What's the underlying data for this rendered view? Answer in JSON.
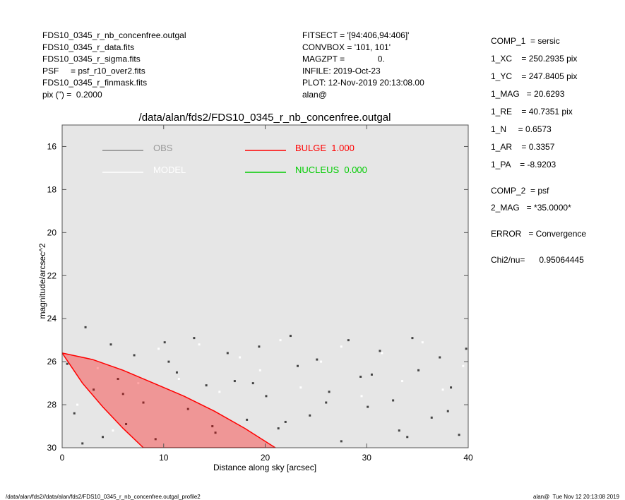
{
  "chart_data": {
    "type": "scatter",
    "title": "/data/alan/fds2/FDS10_0345_r_nb_concenfree.outgal",
    "x_label": "Distance along sky [arcsec]",
    "y_label": "magnitude/arcsec^2",
    "xlim": [
      0,
      40
    ],
    "ylim": [
      30,
      15
    ],
    "xticks": [
      0,
      10,
      20,
      30,
      40
    ],
    "yticks": [
      16,
      18,
      20,
      22,
      24,
      26,
      28,
      30
    ],
    "background": "#e6e6e6",
    "header_left": [
      "FDS10_0345_r_nb_concenfree.outgal",
      "FDS10_0345_r_data.fits",
      "FDS10_0345_r_sigma.fits",
      "PSF     = psf_r10_over2.fits",
      "FDS10_0345_r_finmask.fits",
      "pix (\") =  0.2000"
    ],
    "header_middle": [
      "FITSECT = '[94:406,94:406]'",
      "CONVBOX = '101, 101'",
      "MAGZPT =              0.",
      "INFILE: 2019-Oct-23",
      "PLOT: 12-Nov-2019 20:13:08.00",
      "alan@"
    ],
    "params": [
      "COMP_1  = sersic",
      "1_XC    = 250.2935 pix",
      "1_YC    = 247.8405 pix",
      "1_MAG   = 20.6293",
      "1_RE    = 40.7351 pix",
      "1_N     = 0.6573",
      "1_AR    = 0.3357",
      "1_PA    = -8.9203",
      "COMP_2  = psf",
      "2_MAG   = *35.0000*",
      "ERROR   = Convergence",
      "Chi2/nu=      0.95064445"
    ],
    "footer_left": "/data/alan/fds2//data/alan/fds2/FDS10_0345_r_nb_concenfree.outgal_profile2",
    "footer_right": "alan@  Tue Nov 12 20:13:08 2019",
    "series": [
      {
        "name": "OBS",
        "color": "#444444",
        "legend_color": "#999999",
        "x": [
          0.5,
          1.2,
          2.3,
          3.1,
          4.0,
          4.8,
          5.5,
          6.3,
          7.1,
          8.0,
          9.2,
          10.1,
          11.3,
          12.4,
          13.0,
          14.2,
          15.1,
          16.3,
          17.0,
          18.2,
          19.4,
          20.1,
          21.3,
          22.5,
          23.2,
          24.4,
          25.1,
          26.3,
          27.5,
          28.2,
          29.4,
          30.1,
          31.3,
          32.6,
          33.2,
          34.5,
          35.1,
          36.4,
          37.2,
          38.3,
          39.1,
          39.8,
          2.0,
          6.0,
          10.5,
          14.8,
          18.8,
          22.0,
          26.0,
          30.5,
          34.0,
          38.0
        ],
        "values": [
          26.1,
          28.4,
          24.4,
          27.3,
          29.5,
          25.2,
          26.8,
          28.9,
          25.7,
          27.9,
          29.6,
          25.1,
          26.5,
          28.2,
          24.9,
          27.1,
          29.3,
          25.6,
          26.9,
          28.7,
          25.3,
          27.6,
          29.1,
          24.8,
          26.2,
          28.5,
          25.9,
          27.4,
          29.7,
          25.0,
          26.7,
          28.1,
          25.5,
          27.8,
          29.2,
          24.9,
          26.4,
          28.6,
          25.8,
          27.2,
          29.4,
          25.4,
          29.8,
          27.5,
          26.0,
          29.0,
          27.0,
          28.8,
          27.9,
          26.6,
          29.5,
          28.3
        ]
      },
      {
        "name": "MODEL",
        "color": "#ffffff",
        "legend_color": "#ffffff",
        "x": [
          1.5,
          3.5,
          5.0,
          7.5,
          9.5,
          11.5,
          13.5,
          15.5,
          17.5,
          19.5,
          21.5,
          23.5,
          25.5,
          27.5,
          29.5,
          31.5,
          33.5,
          35.5,
          37.5,
          39.5
        ],
        "values": [
          28.0,
          26.3,
          29.2,
          27.0,
          25.4,
          26.8,
          25.2,
          27.4,
          25.8,
          26.4,
          25.0,
          27.2,
          26.0,
          25.3,
          27.6,
          25.6,
          26.9,
          25.1,
          27.3,
          26.2
        ]
      },
      {
        "name": "BULGE  1.000",
        "color": "#ff0000",
        "legend_color": "#ff0000",
        "x": [
          0,
          3,
          6,
          9,
          12,
          15,
          18,
          21,
          8,
          6,
          4,
          2
        ],
        "values": [
          25.6,
          25.9,
          26.4,
          27.0,
          27.6,
          28.3,
          29.1,
          30.0,
          30.0,
          29.1,
          28.1,
          27.0
        ]
      },
      {
        "name": "NUCLEUS  0.000",
        "color": "#00cc00",
        "legend_color": "#00cc00",
        "x": [],
        "values": []
      }
    ]
  }
}
